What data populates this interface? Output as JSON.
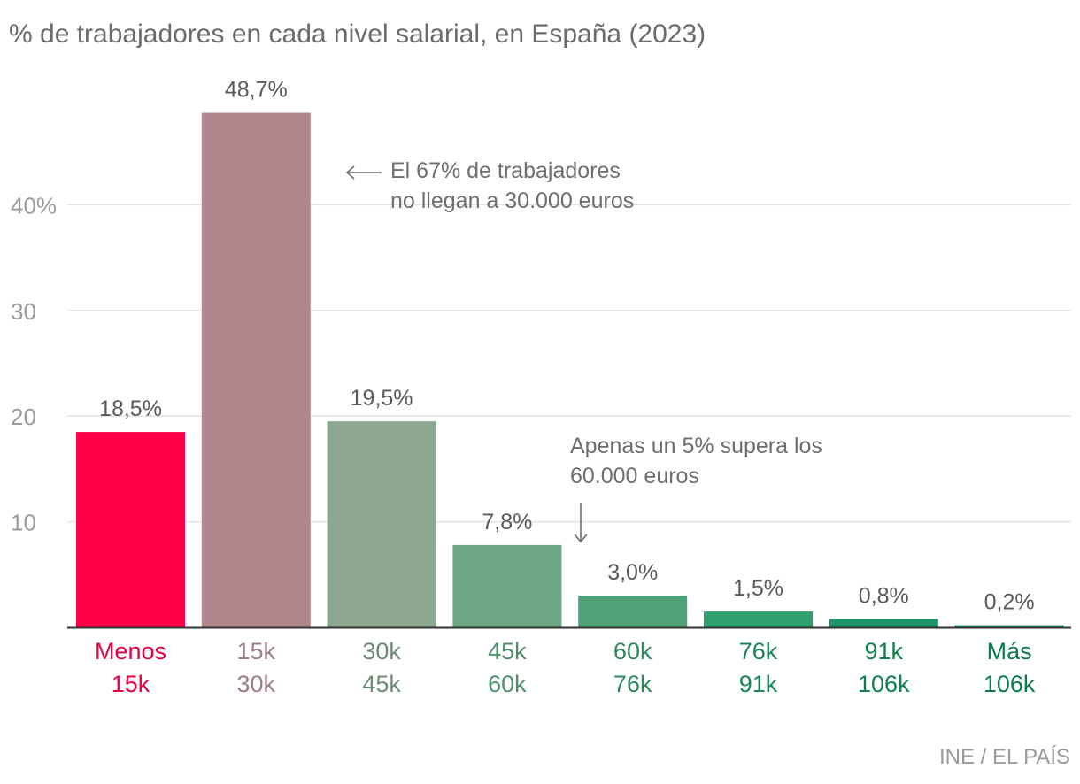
{
  "title": "% de trabajadores en cada nivel salarial, en España (2023)",
  "source": "INE / EL PAÍS",
  "chart_data": {
    "type": "bar",
    "title": "% de trabajadores en cada nivel salarial, en España (2023)",
    "categories": [
      [
        "Menos",
        "15k"
      ],
      [
        "15k",
        "30k"
      ],
      [
        "30k",
        "45k"
      ],
      [
        "45k",
        "60k"
      ],
      [
        "60k",
        "76k"
      ],
      [
        "76k",
        "91k"
      ],
      [
        "91k",
        "106k"
      ],
      [
        "Más",
        "106k"
      ]
    ],
    "values": [
      18.5,
      48.7,
      19.5,
      7.8,
      3.0,
      1.5,
      0.8,
      0.2
    ],
    "value_labels": [
      "18,5%",
      "48,7%",
      "19,5%",
      "7,8%",
      "3,0%",
      "1,5%",
      "0,8%",
      "0,2%"
    ],
    "bar_colors": [
      "#ff0048",
      "#b0878c",
      "#8da690",
      "#6ca683",
      "#4fa277",
      "#30a06e",
      "#1f9466",
      "#12885e"
    ],
    "label_colors": [
      "#e8003f",
      "#a07f84",
      "#6e8c74",
      "#4f8f68",
      "#2f8a5c",
      "#1b8655",
      "#118050",
      "#0c7a4b"
    ],
    "y_ticks": [
      {
        "value": 10,
        "label": "10"
      },
      {
        "value": 20,
        "label": "20"
      },
      {
        "value": 30,
        "label": "30"
      },
      {
        "value": 40,
        "label": "40%"
      }
    ],
    "ylim": [
      0,
      50
    ],
    "grid": true,
    "xlabel": "",
    "ylabel": "",
    "annotations": [
      {
        "lines": [
          "El 67% de trabajadores",
          "no llegan a 30.000 euros"
        ],
        "arrow": "left",
        "target": "15k–30k bar"
      },
      {
        "lines": [
          "Apenas un 5% supera los",
          "60.000 euros"
        ],
        "arrow": "down",
        "target": "60k–76k bar"
      }
    ]
  }
}
